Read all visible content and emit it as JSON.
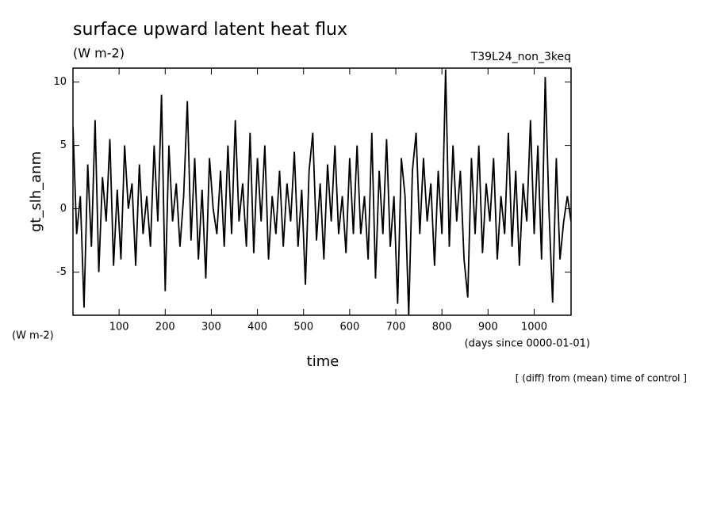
{
  "chart_data": {
    "type": "line",
    "title": "surface upward latent heat flux",
    "subtitle": "(W m-2)",
    "run_label": "T39L24_non_3keq",
    "y_label": "gt_slh_anm",
    "y_units": "(W m-2)",
    "x_label": "time",
    "x_units": "(days since 0000-01-01)",
    "note": "[ (diff) from (mean) time of control ]",
    "xlim": [
      0,
      1080
    ],
    "ylim": [
      -8.4,
      11.1
    ],
    "xticks": [
      100,
      200,
      300,
      400,
      500,
      600,
      700,
      800,
      900,
      1000
    ],
    "yticks": [
      -5,
      0,
      5,
      10
    ],
    "series": [
      {
        "color": "#000000",
        "x": [
          0,
          8,
          16,
          24,
          32,
          40,
          48,
          56,
          64,
          72,
          80,
          88,
          96,
          104,
          112,
          120,
          128,
          136,
          144,
          152,
          160,
          168,
          176,
          184,
          192,
          200,
          208,
          216,
          224,
          232,
          240,
          248,
          256,
          264,
          272,
          280,
          288,
          296,
          304,
          312,
          320,
          328,
          336,
          344,
          352,
          360,
          368,
          376,
          384,
          392,
          400,
          408,
          416,
          424,
          432,
          440,
          448,
          456,
          464,
          472,
          480,
          488,
          496,
          504,
          512,
          520,
          528,
          536,
          544,
          552,
          560,
          568,
          576,
          584,
          592,
          600,
          608,
          616,
          624,
          632,
          640,
          648,
          656,
          664,
          672,
          680,
          688,
          696,
          704,
          712,
          720,
          728,
          736,
          744,
          752,
          760,
          768,
          776,
          784,
          792,
          800,
          808,
          816,
          824,
          832,
          840,
          848,
          856,
          864,
          872,
          880,
          888,
          896,
          904,
          912,
          920,
          928,
          936,
          944,
          952,
          960,
          968,
          976,
          984,
          992,
          1000,
          1008,
          1016,
          1024,
          1032,
          1040,
          1048,
          1056,
          1064,
          1072,
          1080
        ],
        "values": [
          6.5,
          -2,
          1,
          -7.8,
          3.5,
          -3,
          7,
          -5,
          2.5,
          -1,
          5.5,
          -4.5,
          1.5,
          -4,
          5,
          0,
          2,
          -4.5,
          3.5,
          -2,
          1,
          -3,
          5,
          -1,
          9,
          -6.5,
          5,
          -1,
          2,
          -3,
          1,
          8.5,
          -2.5,
          4,
          -4,
          1.5,
          -5.5,
          4,
          0,
          -2,
          3,
          -3,
          5,
          -2,
          7,
          -1,
          2,
          -3,
          6,
          -3.5,
          4,
          -1,
          5,
          -4,
          1,
          -2,
          3,
          -3,
          2,
          -1,
          4.5,
          -3,
          1.5,
          -6,
          3,
          6,
          -2.5,
          2,
          -4,
          3.5,
          -1,
          5,
          -2,
          1,
          -3.5,
          4,
          -2,
          5,
          -2,
          1,
          -4,
          6,
          -5.5,
          3,
          -2,
          5.5,
          -3,
          1,
          -7.5,
          4,
          1,
          -8.4,
          3,
          6,
          -2,
          4,
          -1,
          2,
          -4.5,
          3,
          -2,
          11,
          -3,
          5,
          -1,
          3,
          -4,
          -7,
          4,
          -2,
          5,
          -3.5,
          2,
          -1,
          4,
          -4,
          1,
          -2,
          6,
          -3,
          3,
          -4.5,
          2,
          -1,
          7,
          -2,
          5,
          -4,
          10.4,
          0,
          -7.4,
          4,
          -4,
          -1,
          1,
          -1
        ]
      }
    ]
  }
}
